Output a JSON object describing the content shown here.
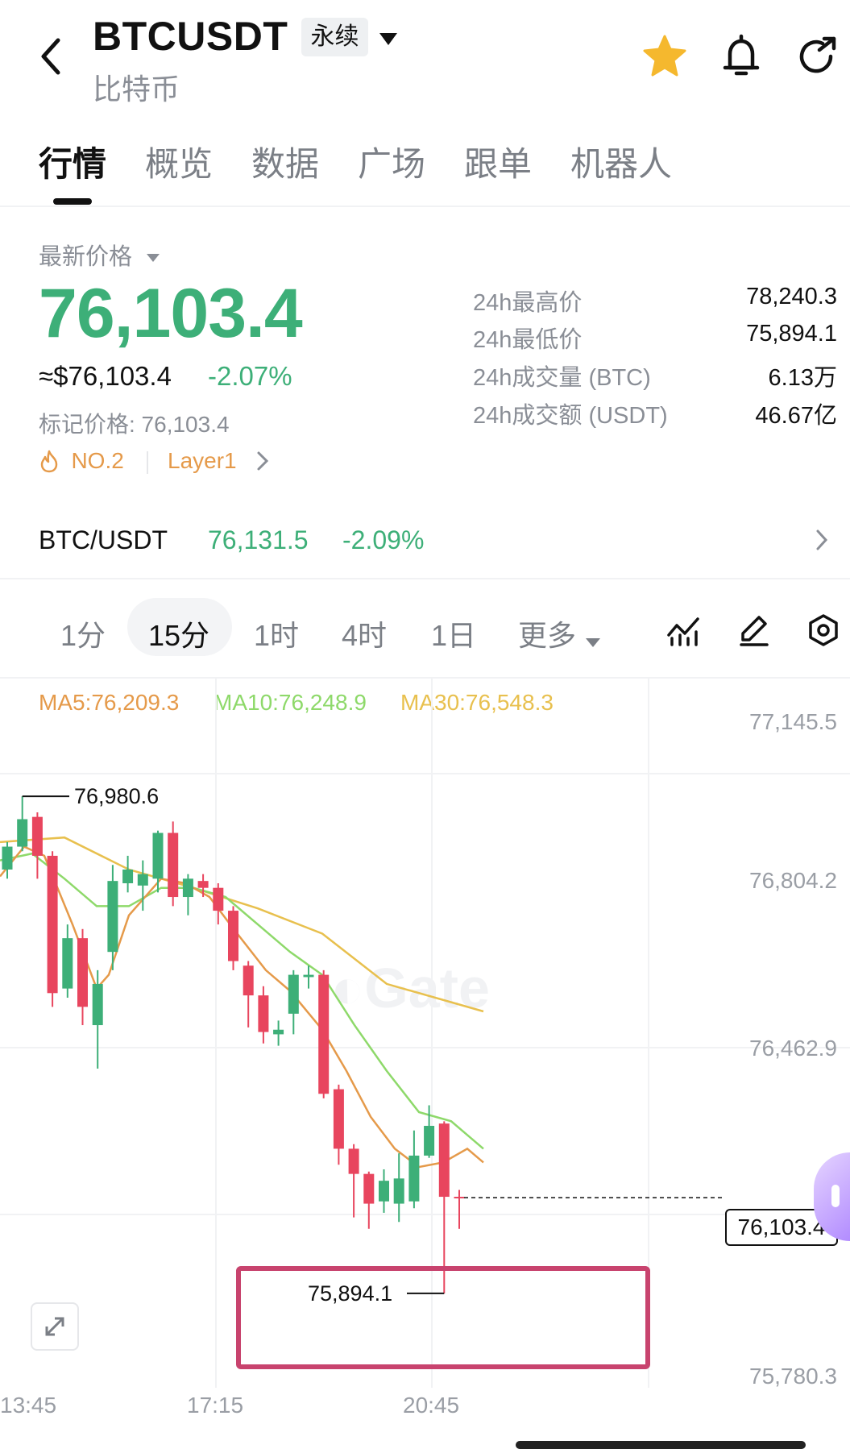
{
  "header": {
    "title": "BTCUSDT",
    "badge": "永续",
    "subtitle": "比特币"
  },
  "tabs": [
    {
      "label": "行情",
      "active": true
    },
    {
      "label": "概览"
    },
    {
      "label": "数据"
    },
    {
      "label": "广场"
    },
    {
      "label": "跟单"
    },
    {
      "label": "机器人"
    }
  ],
  "price": {
    "label": "最新价格",
    "last": "76,103.4",
    "usd": "≈$76,103.4",
    "change": "-2.07%",
    "mark": "标记价格: 76,103.4",
    "rank": "NO.2",
    "category": "Layer1"
  },
  "stats": [
    {
      "label": "24h最高价",
      "value": "78,240.3"
    },
    {
      "label": "24h最低价",
      "value": "75,894.1"
    },
    {
      "label": "24h成交量 (BTC)",
      "value": "6.13万"
    },
    {
      "label": "24h成交额 (USDT)",
      "value": "46.67亿"
    }
  ],
  "spot": {
    "pair": "BTC/USDT",
    "price": "76,131.5",
    "change": "-2.09%"
  },
  "intervals": [
    {
      "label": "1分"
    },
    {
      "label": "15分",
      "active": true
    },
    {
      "label": "1时"
    },
    {
      "label": "4时"
    },
    {
      "label": "1日"
    },
    {
      "label": "更多"
    }
  ],
  "ma": {
    "ma5": "MA5:76,209.3",
    "ma10": "MA10:76,248.9",
    "ma30": "MA30:76,548.3",
    "colors": {
      "ma5": "#e59a4a",
      "ma10": "#8ed96a",
      "ma30": "#e8c04e"
    }
  },
  "colors": {
    "up": "#3daf78",
    "down": "#e8455e",
    "highlight": "#c8436e"
  },
  "chart_data": {
    "type": "candlestick",
    "y_ticks": [
      "77,145.5",
      "76,804.2",
      "76,462.9",
      "75,780.3"
    ],
    "x_ticks": [
      "13:45",
      "17:15",
      "20:45"
    ],
    "high_label": "76,980.6",
    "low_label": "75,894.1",
    "last_label": "76,103.4",
    "ylim": [
      75723,
      77202
    ],
    "candles": [
      {
        "o": 76820,
        "c": 76870,
        "h": 76880,
        "l": 76800
      },
      {
        "o": 76870,
        "c": 76930,
        "h": 76980,
        "l": 76860
      },
      {
        "o": 76935,
        "c": 76850,
        "h": 76945,
        "l": 76800
      },
      {
        "o": 76850,
        "c": 76550,
        "h": 76860,
        "l": 76520
      },
      {
        "o": 76560,
        "c": 76670,
        "h": 76700,
        "l": 76540
      },
      {
        "o": 76670,
        "c": 76520,
        "h": 76690,
        "l": 76480
      },
      {
        "o": 76480,
        "c": 76570,
        "h": 76600,
        "l": 76385
      },
      {
        "o": 76640,
        "c": 76795,
        "h": 76830,
        "l": 76600
      },
      {
        "o": 76790,
        "c": 76820,
        "h": 76850,
        "l": 76770
      },
      {
        "o": 76785,
        "c": 76810,
        "h": 76840,
        "l": 76730
      },
      {
        "o": 76800,
        "c": 76900,
        "h": 76905,
        "l": 76770
      },
      {
        "o": 76900,
        "c": 76760,
        "h": 76925,
        "l": 76740
      },
      {
        "o": 76760,
        "c": 76800,
        "h": 76810,
        "l": 76720
      },
      {
        "o": 76795,
        "c": 76780,
        "h": 76810,
        "l": 76760
      },
      {
        "o": 76780,
        "c": 76730,
        "h": 76790,
        "l": 76700
      },
      {
        "o": 76730,
        "c": 76620,
        "h": 76740,
        "l": 76600
      },
      {
        "o": 76610,
        "c": 76545,
        "h": 76620,
        "l": 76475
      },
      {
        "o": 76545,
        "c": 76465,
        "h": 76565,
        "l": 76440
      },
      {
        "o": 76460,
        "c": 76470,
        "h": 76490,
        "l": 76435
      },
      {
        "o": 76505,
        "c": 76590,
        "h": 76600,
        "l": 76460
      },
      {
        "o": 76585,
        "c": 76590,
        "h": 76610,
        "l": 76560
      },
      {
        "o": 76590,
        "c": 76330,
        "h": 76600,
        "l": 76320
      },
      {
        "o": 76340,
        "c": 76210,
        "h": 76350,
        "l": 76175
      },
      {
        "o": 76210,
        "c": 76155,
        "h": 76220,
        "l": 76060
      },
      {
        "o": 76155,
        "c": 76090,
        "h": 76160,
        "l": 76035
      },
      {
        "o": 76095,
        "c": 76140,
        "h": 76165,
        "l": 76070
      },
      {
        "o": 76090,
        "c": 76145,
        "h": 76200,
        "l": 76050
      },
      {
        "o": 76095,
        "c": 76195,
        "h": 76250,
        "l": 76080
      },
      {
        "o": 76195,
        "c": 76260,
        "h": 76305,
        "l": 76190
      },
      {
        "o": 76265,
        "c": 76105,
        "h": 76270,
        "l": 75894
      },
      {
        "o": 76105,
        "c": 76103,
        "h": 76120,
        "l": 76035
      }
    ],
    "ma5_line": [
      [
        0,
        76805
      ],
      [
        30,
        76870
      ],
      [
        55,
        76850
      ],
      [
        90,
        76700
      ],
      [
        120,
        76560
      ],
      [
        135,
        76590
      ],
      [
        160,
        76720
      ],
      [
        200,
        76800
      ],
      [
        230,
        76790
      ],
      [
        260,
        76760
      ],
      [
        290,
        76690
      ],
      [
        330,
        76600
      ],
      [
        360,
        76555
      ],
      [
        400,
        76470
      ],
      [
        430,
        76380
      ],
      [
        460,
        76280
      ],
      [
        490,
        76210
      ],
      [
        520,
        76170
      ],
      [
        550,
        76180
      ],
      [
        580,
        76210
      ],
      [
        600,
        76180
      ]
    ],
    "ma10_line": [
      [
        0,
        76840
      ],
      [
        40,
        76855
      ],
      [
        80,
        76800
      ],
      [
        120,
        76740
      ],
      [
        160,
        76740
      ],
      [
        200,
        76780
      ],
      [
        240,
        76780
      ],
      [
        280,
        76760
      ],
      [
        320,
        76700
      ],
      [
        360,
        76640
      ],
      [
        400,
        76590
      ],
      [
        440,
        76480
      ],
      [
        480,
        76380
      ],
      [
        520,
        76290
      ],
      [
        560,
        76270
      ],
      [
        600,
        76210
      ]
    ],
    "ma30_line": [
      [
        0,
        76880
      ],
      [
        80,
        76890
      ],
      [
        160,
        76820
      ],
      [
        240,
        76780
      ],
      [
        320,
        76735
      ],
      [
        400,
        76680
      ],
      [
        480,
        76570
      ],
      [
        600,
        76510
      ]
    ]
  },
  "icons": [
    "back-icon",
    "dropdown-icon",
    "star-icon",
    "bell-icon",
    "share-icon",
    "flame-icon",
    "chevron-right-icon",
    "indicator-icon",
    "pen-icon",
    "settings-icon",
    "expand-icon"
  ]
}
